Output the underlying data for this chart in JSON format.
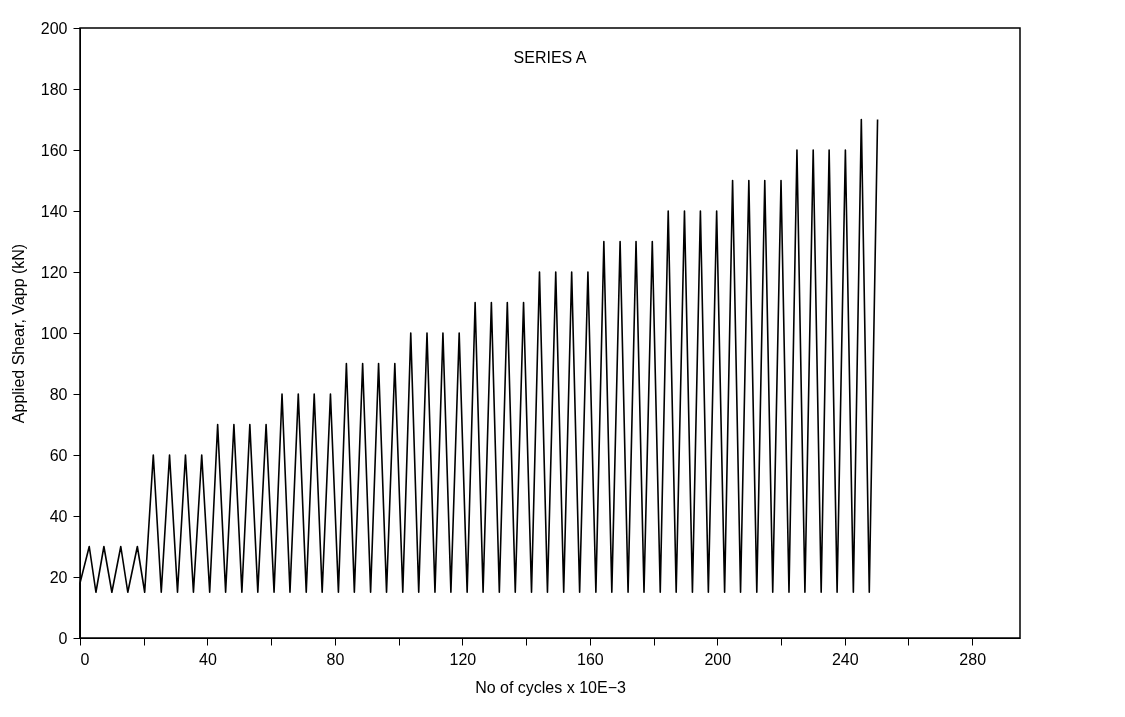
{
  "chart_data": {
    "type": "line",
    "xlabel": "No of cycles x 10E−3",
    "ylabel": "Applied Shear, Vapp (kN)",
    "annotations": [
      "SERIES A"
    ],
    "xlim": [
      0,
      295
    ],
    "ylim": [
      0,
      200
    ],
    "xticks": [
      0,
      {
        "value": 20,
        "label": null
      },
      40,
      {
        "value": 60,
        "label": null
      },
      80,
      {
        "value": 100,
        "label": null
      },
      120,
      {
        "value": 140,
        "label": null
      },
      160,
      {
        "value": 180,
        "label": null
      },
      200,
      {
        "value": 220,
        "label": null
      },
      240,
      {
        "value": 260,
        "label": null
      },
      280
    ],
    "yticks": [
      0,
      20,
      40,
      60,
      80,
      100,
      120,
      140,
      160,
      180,
      200
    ],
    "grid": false,
    "marker": "none",
    "line_style": "solid",
    "series": [
      {
        "color": "#000000",
        "x": [
          0,
          0,
          2.9,
          5,
          7.5,
          10,
          12.8,
          15,
          18,
          20.3,
          23.0,
          25.5,
          28.1,
          30.6,
          33.1,
          35.6,
          38.2,
          40.7,
          43.2,
          45.7,
          48.3,
          50.8,
          53.3,
          55.8,
          58.4,
          60.9,
          63.4,
          65.9,
          68.5,
          71.0,
          73.5,
          76.0,
          78.6,
          81.1,
          83.6,
          86.1,
          88.7,
          91.2,
          93.7,
          96.2,
          98.8,
          101.3,
          103.8,
          106.3,
          108.9,
          111.4,
          113.9,
          116.4,
          119.0,
          121.5,
          124.0,
          126.5,
          129.1,
          131.6,
          134.1,
          136.6,
          139.2,
          141.7,
          144.2,
          146.7,
          149.3,
          151.8,
          154.3,
          156.8,
          159.4,
          161.9,
          164.4,
          166.9,
          169.5,
          172.0,
          174.5,
          177.0,
          179.6,
          182.1,
          184.6,
          187.1,
          189.7,
          192.2,
          194.7,
          197.2,
          199.8,
          202.3,
          204.8,
          207.3,
          209.9,
          212.4,
          214.9,
          217.4,
          220.0,
          222.5,
          225.0,
          227.5,
          230.1,
          232.6,
          235.1,
          237.6,
          240.2,
          242.7,
          245.2,
          247.7,
          250.3
        ],
        "values": [
          0,
          18,
          30,
          15,
          30,
          15,
          30,
          15,
          30,
          15,
          60,
          15,
          60,
          15,
          60,
          15,
          60,
          15,
          70,
          15,
          70,
          15,
          70,
          15,
          70,
          15,
          80,
          15,
          80,
          15,
          80,
          15,
          80,
          15,
          90,
          15,
          90,
          15,
          90,
          15,
          90,
          15,
          100,
          15,
          100,
          15,
          100,
          15,
          100,
          15,
          110,
          15,
          110,
          15,
          110,
          15,
          110,
          15,
          120,
          15,
          120,
          15,
          120,
          15,
          120,
          15,
          130,
          15,
          130,
          15,
          130,
          15,
          130,
          15,
          140,
          15,
          140,
          15,
          140,
          15,
          140,
          15,
          150,
          15,
          150,
          15,
          150,
          15,
          150,
          15,
          160,
          15,
          160,
          15,
          160,
          15,
          160,
          15,
          170,
          15,
          170
        ]
      }
    ]
  }
}
